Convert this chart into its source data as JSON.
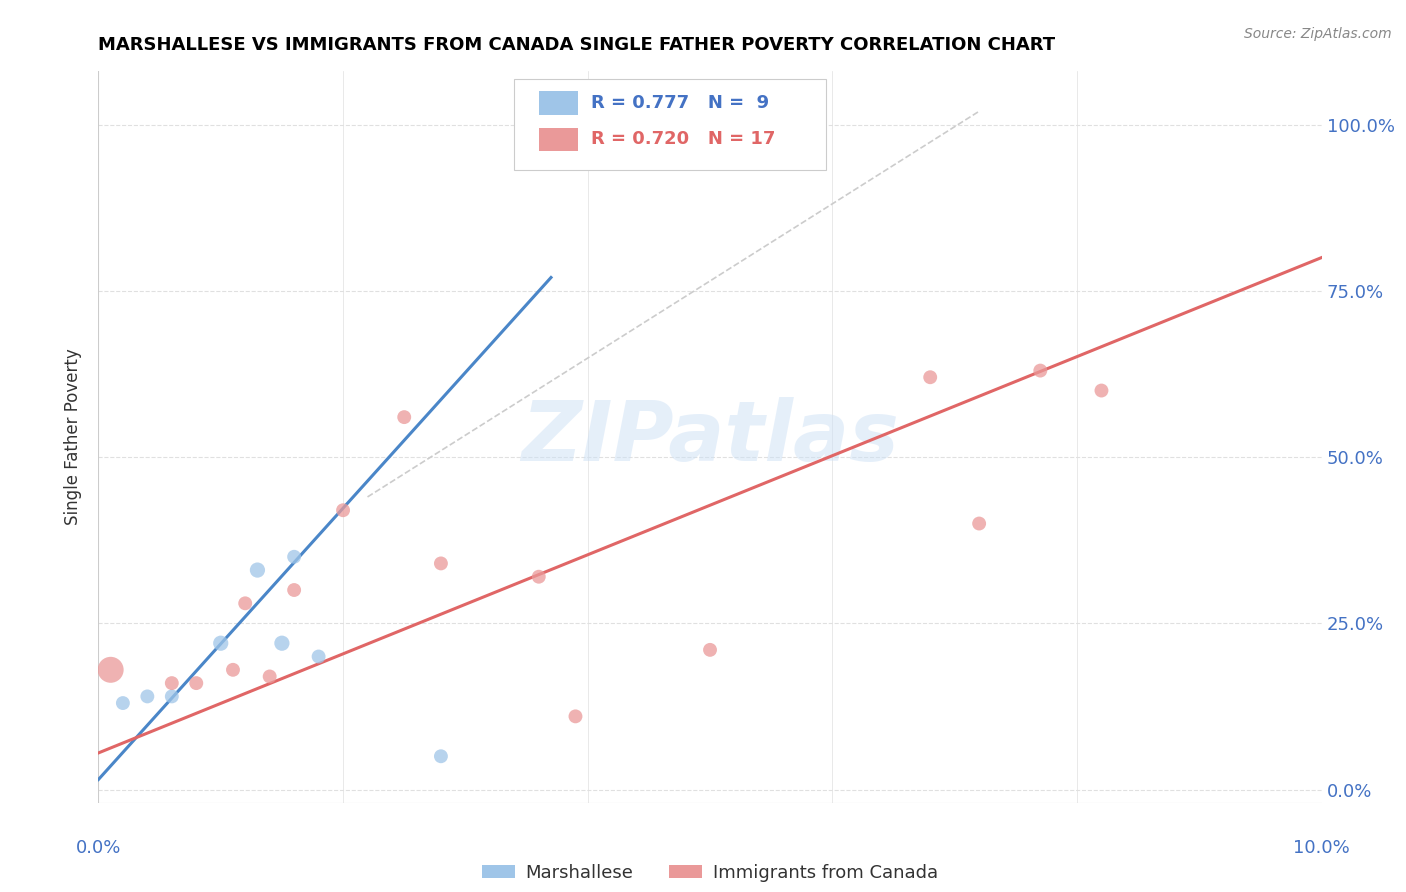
{
  "title": "MARSHALLESE VS IMMIGRANTS FROM CANADA SINGLE FATHER POVERTY CORRELATION CHART",
  "source": "Source: ZipAtlas.com",
  "ylabel": "Single Father Poverty",
  "ytick_labels": [
    "0.0%",
    "25.0%",
    "50.0%",
    "75.0%",
    "100.0%"
  ],
  "ytick_values": [
    0.0,
    0.25,
    0.5,
    0.75,
    1.0
  ],
  "xtick_left_label": "0.0%",
  "xtick_right_label": "10.0%",
  "xlim": [
    0.0,
    0.1
  ],
  "ylim": [
    -0.02,
    1.08
  ],
  "legend_r1": "R = 0.777",
  "legend_n1": "N =  9",
  "legend_r2": "R = 0.720",
  "legend_n2": "N = 17",
  "legend_label1": "Marshallese",
  "legend_label2": "Immigrants from Canada",
  "watermark": "ZIPatlas",
  "blue_color": "#9fc5e8",
  "pink_color": "#ea9999",
  "blue_line_color": "#4a86c8",
  "pink_line_color": "#e06666",
  "dashed_line_color": "#cccccc",
  "axis_text_color": "#4472c4",
  "grid_color": "#e0e0e0",
  "blue_scatter": [
    [
      0.002,
      0.13
    ],
    [
      0.004,
      0.14
    ],
    [
      0.006,
      0.14
    ],
    [
      0.01,
      0.22
    ],
    [
      0.013,
      0.33
    ],
    [
      0.015,
      0.22
    ],
    [
      0.016,
      0.35
    ],
    [
      0.018,
      0.2
    ],
    [
      0.028,
      0.05
    ]
  ],
  "blue_sizes": [
    100,
    100,
    100,
    120,
    120,
    120,
    100,
    100,
    100
  ],
  "pink_scatter": [
    [
      0.001,
      0.18
    ],
    [
      0.006,
      0.16
    ],
    [
      0.008,
      0.16
    ],
    [
      0.011,
      0.18
    ],
    [
      0.012,
      0.28
    ],
    [
      0.014,
      0.17
    ],
    [
      0.016,
      0.3
    ],
    [
      0.02,
      0.42
    ],
    [
      0.025,
      0.56
    ],
    [
      0.028,
      0.34
    ],
    [
      0.036,
      0.32
    ],
    [
      0.039,
      0.11
    ],
    [
      0.05,
      0.21
    ],
    [
      0.068,
      0.62
    ],
    [
      0.072,
      0.4
    ],
    [
      0.077,
      0.63
    ],
    [
      0.082,
      0.6
    ]
  ],
  "pink_sizes": [
    350,
    100,
    100,
    100,
    100,
    100,
    100,
    100,
    100,
    100,
    100,
    100,
    100,
    100,
    100,
    100,
    100
  ],
  "blue_line_x": [
    0.0,
    0.037
  ],
  "blue_line_y": [
    0.015,
    0.77
  ],
  "pink_line_x": [
    0.0,
    0.1
  ],
  "pink_line_y": [
    0.055,
    0.8
  ],
  "dashed_line_x": [
    0.022,
    0.072
  ],
  "dashed_line_y": [
    0.44,
    1.02
  ]
}
